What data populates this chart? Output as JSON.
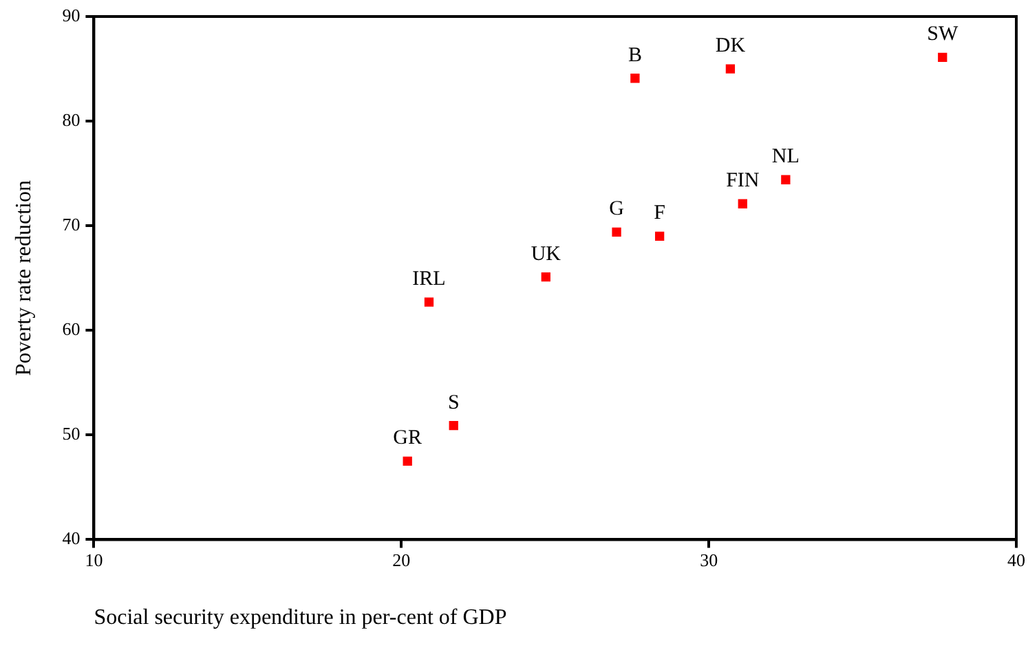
{
  "chart_data": {
    "type": "scatter",
    "xlabel": "Social security expenditure in per-cent of GDP",
    "ylabel": "Poverty rate reduction",
    "x": [
      20.2,
      21.7,
      20.9,
      24.7,
      27.0,
      28.4,
      27.6,
      30.7,
      31.1,
      32.5,
      37.6
    ],
    "series": [
      {
        "color": "#ff0000",
        "values": [
          47.5,
          50.9,
          62.7,
          65.1,
          69.4,
          69.0,
          84.1,
          85.0,
          72.1,
          74.4,
          86.1
        ]
      }
    ],
    "annotations": [
      {
        "text": "GR",
        "x": 20.2,
        "y": 47.5
      },
      {
        "text": "S",
        "x": 21.7,
        "y": 50.9
      },
      {
        "text": "IRL",
        "x": 20.9,
        "y": 62.7
      },
      {
        "text": "UK",
        "x": 24.7,
        "y": 65.1
      },
      {
        "text": "G",
        "x": 27.0,
        "y": 69.4
      },
      {
        "text": "F",
        "x": 28.4,
        "y": 69.0
      },
      {
        "text": "B",
        "x": 27.6,
        "y": 84.1
      },
      {
        "text": "DK",
        "x": 30.7,
        "y": 85.0
      },
      {
        "text": "FIN",
        "x": 31.1,
        "y": 72.1
      },
      {
        "text": "NL",
        "x": 32.5,
        "y": 74.4
      },
      {
        "text": "SW",
        "x": 37.6,
        "y": 86.1
      }
    ],
    "xlim": [
      10,
      40
    ],
    "xticks": [
      10,
      20,
      30,
      40
    ],
    "ylim": [
      40,
      90
    ],
    "yticks": [
      40,
      50,
      60,
      70,
      80,
      90
    ],
    "grid": false,
    "legend": false,
    "marker": "square"
  }
}
